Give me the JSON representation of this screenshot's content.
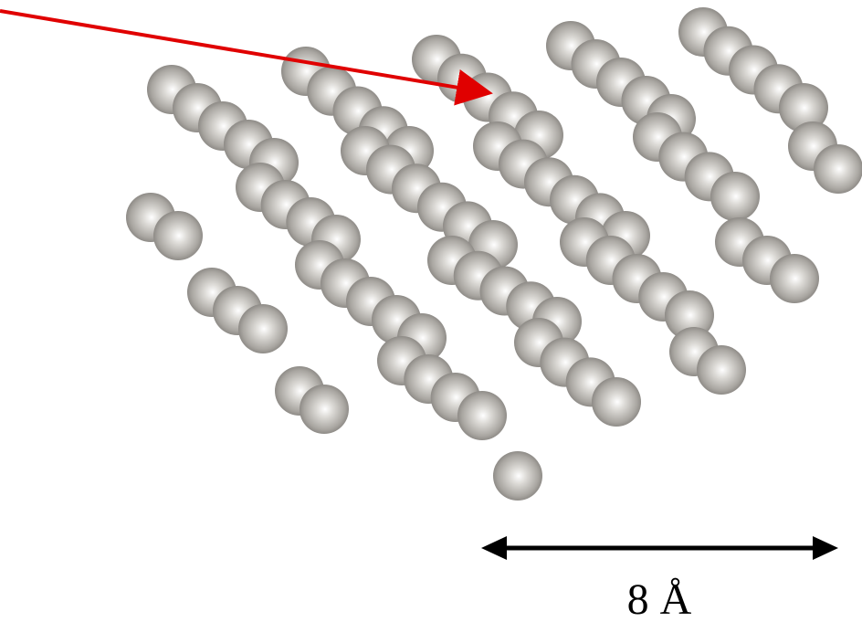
{
  "scale_bar": {
    "label": "8 Å"
  }
}
